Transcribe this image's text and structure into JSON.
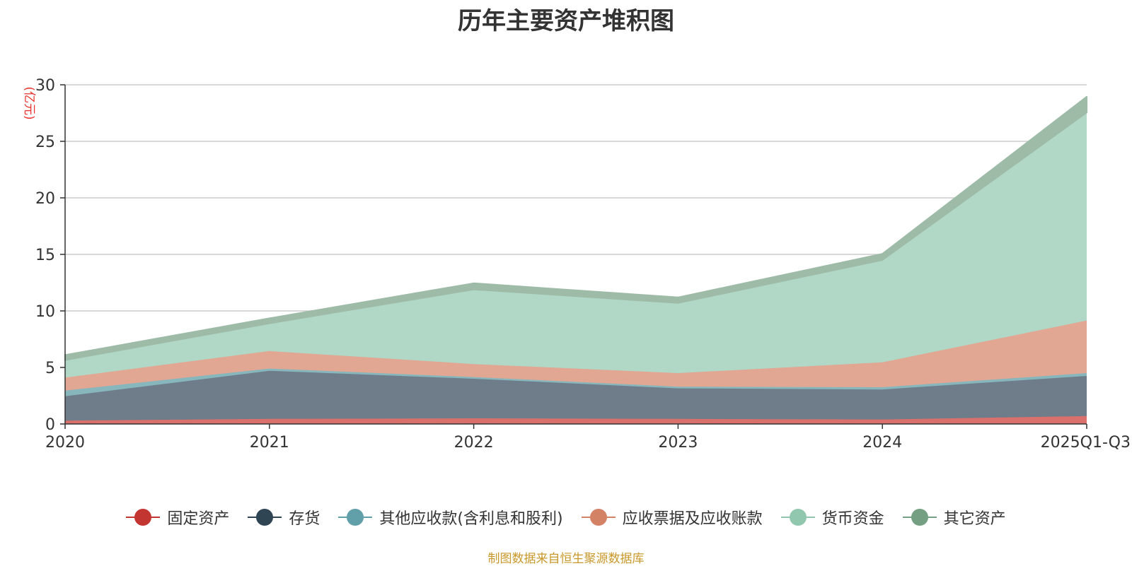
{
  "chart_data": {
    "type": "area",
    "stacked": true,
    "title": "历年主要资产堆积图",
    "ylabel": "亿元",
    "ylabel_display": "(亿元)",
    "categories": [
      "2020",
      "2021",
      "2022",
      "2023",
      "2024",
      "2025Q1-Q3"
    ],
    "ylim": [
      0,
      30
    ],
    "yticks": [
      0,
      5,
      10,
      15,
      20,
      25,
      30
    ],
    "grid": true,
    "legend_position": "bottom",
    "series": [
      {
        "name": "固定资产",
        "color": "#c23531",
        "fill": "#d9706c",
        "values": [
          0.3,
          0.45,
          0.5,
          0.45,
          0.4,
          0.7
        ]
      },
      {
        "name": "存货",
        "color": "#2f4554",
        "fill": "#6e7d89",
        "values": [
          2.15,
          4.25,
          3.5,
          2.7,
          2.65,
          3.55
        ]
      },
      {
        "name": "其他应收款(含利息和股利)",
        "color": "#61a0a8",
        "fill": "#87b6bd",
        "values": [
          0.5,
          0.2,
          0.15,
          0.15,
          0.2,
          0.25
        ]
      },
      {
        "name": "应收票据及应收账款",
        "color": "#d48265",
        "fill": "#e1a792",
        "values": [
          1.15,
          1.55,
          1.15,
          1.2,
          2.2,
          4.65
        ]
      },
      {
        "name": "货币资金",
        "color": "#91c7ae",
        "fill": "#b1d7c6",
        "values": [
          1.55,
          2.45,
          6.6,
          6.2,
          9.05,
          18.4
        ]
      },
      {
        "name": "其它资产",
        "color": "#749f83",
        "fill": "#9ebba7",
        "values": [
          0.45,
          0.45,
          0.55,
          0.5,
          0.55,
          1.4
        ]
      }
    ]
  },
  "source_note": "制图数据来自恒生聚源数据库"
}
